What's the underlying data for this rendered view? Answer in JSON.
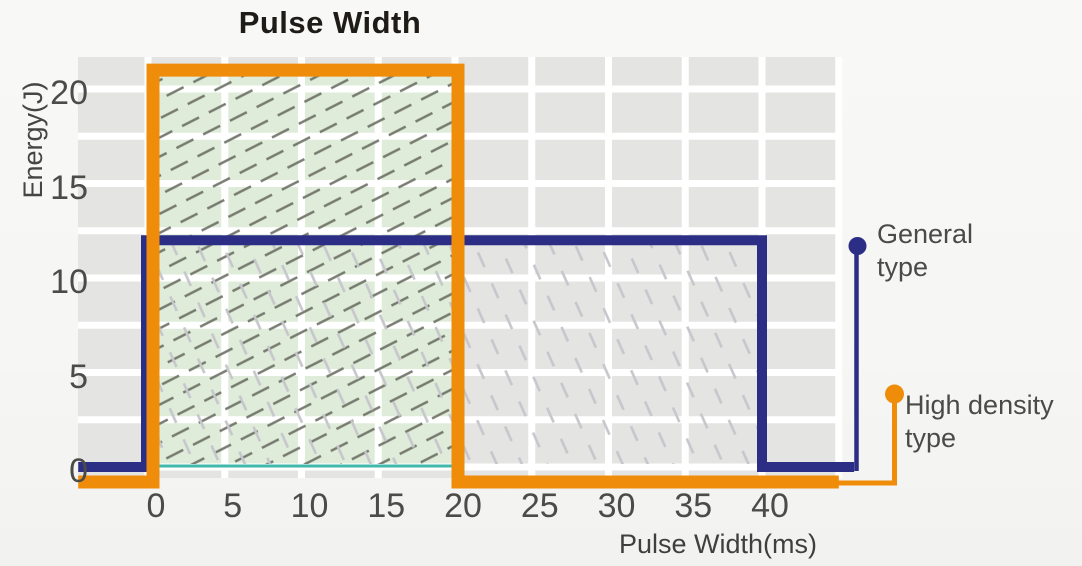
{
  "page": {
    "background": "#f7f7f5"
  },
  "chart_data": {
    "type": "line",
    "title": "Pulse Width",
    "xlabel": "Pulse Width(ms)",
    "ylabel": "Energy(J)",
    "x_ticks": [
      0,
      5,
      10,
      15,
      20,
      25,
      30,
      35,
      40
    ],
    "y_ticks": [
      0,
      5,
      10,
      15,
      20
    ],
    "xlim": [
      -4.5,
      45
    ],
    "ylim": [
      -0.8,
      21.5
    ],
    "grid": {
      "horizontal_step": 2.5,
      "vertical_step": 5,
      "line_color": "#ffffff",
      "band_color": "#e4e4e3",
      "grid_on": true
    },
    "series": [
      {
        "name": "General type",
        "color": "#2b2e84",
        "max_energy_J": 12,
        "max_pulse_width_ms": 40,
        "step_points": [
          [
            -4.55,
            0
          ],
          [
            0,
            0
          ],
          [
            0,
            12
          ],
          [
            40,
            12
          ],
          [
            40,
            0
          ],
          [
            46,
            0
          ]
        ]
      },
      {
        "name": "High density type",
        "color": "#ef8c0a",
        "max_energy_J": 21,
        "max_pulse_width_ms": 20,
        "step_points": [
          [
            -4.55,
            0
          ],
          [
            0,
            0
          ],
          [
            0,
            21
          ],
          [
            20,
            21
          ],
          [
            20,
            0
          ],
          [
            45,
            0
          ]
        ]
      }
    ],
    "regions": [
      {
        "name": "high-density-operating-range",
        "x_ms": [
          0,
          20
        ],
        "y_J": [
          0,
          21
        ],
        "fill": "#dfecda",
        "hatch": "dark-dashed-diagonal",
        "hatch_color": "#6b6f64"
      },
      {
        "name": "general-operating-range",
        "x_ms": [
          0,
          40
        ],
        "y_J": [
          0,
          12
        ],
        "fill": "none",
        "hatch": "light-dashed-steep",
        "hatch_color": "#c6c6cc"
      }
    ],
    "baseline_marker_color": "#41b8ae",
    "legend_position": "right"
  },
  "legend": {
    "general": {
      "label": "General\ntype",
      "color": "#2b2e84"
    },
    "high_density": {
      "label": "High density\ntype",
      "color": "#ef8c0a"
    }
  },
  "text_colors": {
    "title": "#1f1b16",
    "ticks": "#4b4b49",
    "labels": "#3f3f3d"
  }
}
